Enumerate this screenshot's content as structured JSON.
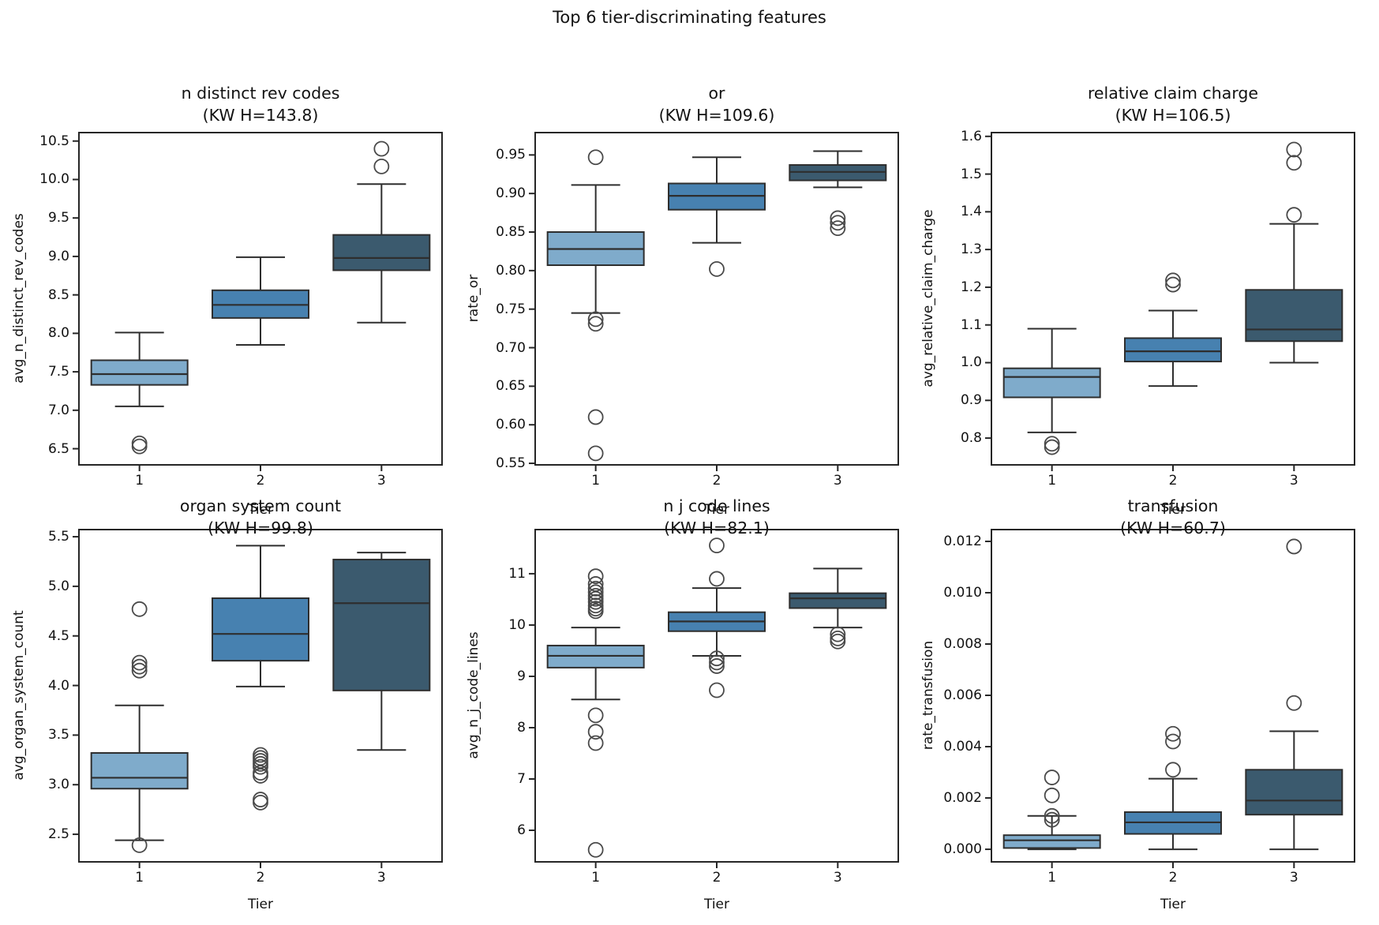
{
  "figure": {
    "title": "Top 6 tier-discriminating features"
  },
  "shared": {
    "xlabel": "Tier",
    "categories": [
      "1",
      "2",
      "3"
    ],
    "palette": [
      "#7fabcb",
      "#4781b0",
      "#3b5a6e"
    ],
    "edge_color": "#2e2e2e",
    "outlier_color": "#4a4a4a",
    "spine_color": "#262626"
  },
  "chart_data": [
    {
      "type": "box",
      "title": "n distinct rev codes",
      "kw_label": "(KW H=143.8)",
      "ylabel": "avg_n_distinct_rev_codes",
      "ylim": [
        6.29,
        10.61
      ],
      "yticks": [
        6.5,
        7.0,
        7.5,
        8.0,
        8.5,
        9.0,
        9.5,
        10.0,
        10.5
      ],
      "ytick_labels": [
        "6.5",
        "7.0",
        "7.5",
        "8.0",
        "8.5",
        "9.0",
        "9.5",
        "10.0",
        "10.5"
      ],
      "series": [
        {
          "tier": "1",
          "whislo": 7.05,
          "q1": 7.33,
          "med": 7.47,
          "q3": 7.65,
          "whishi": 8.01,
          "outliers": [
            6.57,
            6.53
          ]
        },
        {
          "tier": "2",
          "whislo": 7.85,
          "q1": 8.2,
          "med": 8.37,
          "q3": 8.56,
          "whishi": 8.99,
          "outliers": []
        },
        {
          "tier": "3",
          "whislo": 8.14,
          "q1": 8.82,
          "med": 8.98,
          "q3": 9.28,
          "whishi": 9.94,
          "outliers": [
            10.4,
            10.17
          ]
        }
      ]
    },
    {
      "type": "box",
      "title": "or",
      "kw_label": "(KW H=109.6)",
      "ylabel": "rate_or",
      "ylim": [
        0.548,
        0.979
      ],
      "yticks": [
        0.55,
        0.6,
        0.65,
        0.7,
        0.75,
        0.8,
        0.85,
        0.9,
        0.95
      ],
      "ytick_labels": [
        "0.55",
        "0.60",
        "0.65",
        "0.70",
        "0.75",
        "0.80",
        "0.85",
        "0.90",
        "0.95"
      ],
      "series": [
        {
          "tier": "1",
          "whislo": 0.745,
          "q1": 0.807,
          "med": 0.828,
          "q3": 0.85,
          "whishi": 0.911,
          "outliers": [
            0.947,
            0.737,
            0.731,
            0.61,
            0.563
          ]
        },
        {
          "tier": "2",
          "whislo": 0.836,
          "q1": 0.879,
          "med": 0.897,
          "q3": 0.913,
          "whishi": 0.947,
          "outliers": [
            0.802
          ]
        },
        {
          "tier": "3",
          "whislo": 0.908,
          "q1": 0.917,
          "med": 0.928,
          "q3": 0.937,
          "whishi": 0.955,
          "outliers": [
            0.868,
            0.862,
            0.855
          ]
        }
      ]
    },
    {
      "type": "box",
      "title": "relative claim charge",
      "kw_label": "(KW H=106.5)",
      "ylabel": "avg_relative_claim_charge",
      "ylim": [
        0.729,
        1.61
      ],
      "yticks": [
        0.8,
        0.9,
        1.0,
        1.1,
        1.2,
        1.3,
        1.4,
        1.5,
        1.6
      ],
      "ytick_labels": [
        "0.8",
        "0.9",
        "1.0",
        "1.1",
        "1.2",
        "1.3",
        "1.4",
        "1.5",
        "1.6"
      ],
      "series": [
        {
          "tier": "1",
          "whislo": 0.815,
          "q1": 0.908,
          "med": 0.962,
          "q3": 0.985,
          "whishi": 1.09,
          "outliers": [
            0.785,
            0.776
          ]
        },
        {
          "tier": "2",
          "whislo": 0.938,
          "q1": 1.003,
          "med": 1.03,
          "q3": 1.065,
          "whishi": 1.138,
          "outliers": [
            1.218,
            1.207
          ]
        },
        {
          "tier": "3",
          "whislo": 1.0,
          "q1": 1.057,
          "med": 1.088,
          "q3": 1.193,
          "whishi": 1.368,
          "outliers": [
            1.565,
            1.53,
            1.392
          ]
        }
      ]
    },
    {
      "type": "box",
      "title": "organ system count",
      "kw_label": "(KW H=99.8)",
      "ylabel": "avg_organ_system_count",
      "ylim": [
        2.222,
        5.572
      ],
      "yticks": [
        2.5,
        3.0,
        3.5,
        4.0,
        4.5,
        5.0,
        5.5
      ],
      "ytick_labels": [
        "2.5",
        "3.0",
        "3.5",
        "4.0",
        "4.5",
        "5.0",
        "5.5"
      ],
      "series": [
        {
          "tier": "1",
          "whislo": 2.44,
          "q1": 2.96,
          "med": 3.07,
          "q3": 3.32,
          "whishi": 3.8,
          "outliers": [
            4.77,
            4.23,
            4.19,
            4.15,
            2.39
          ]
        },
        {
          "tier": "2",
          "whislo": 3.99,
          "q1": 4.25,
          "med": 4.52,
          "q3": 4.88,
          "whishi": 5.41,
          "outliers": [
            3.3,
            3.27,
            3.24,
            3.21,
            3.18,
            3.12,
            3.09,
            2.85,
            2.82
          ]
        },
        {
          "tier": "3",
          "whislo": 3.35,
          "q1": 3.95,
          "med": 4.83,
          "q3": 5.27,
          "whishi": 5.34,
          "outliers": []
        }
      ]
    },
    {
      "type": "box",
      "title": "n j code lines",
      "kw_label": "(KW H=82.1)",
      "ylabel": "avg_n_j_code_lines",
      "ylim": [
        5.385,
        11.86
      ],
      "yticks": [
        6,
        7,
        8,
        9,
        10,
        11
      ],
      "ytick_labels": [
        "6",
        "7",
        "8",
        "9",
        "10",
        "11"
      ],
      "series": [
        {
          "tier": "1",
          "whislo": 8.55,
          "q1": 9.17,
          "med": 9.4,
          "q3": 9.6,
          "whishi": 9.95,
          "outliers": [
            10.95,
            10.8,
            10.71,
            10.64,
            10.57,
            10.51,
            10.45,
            10.38,
            10.32,
            10.27,
            8.24,
            7.92,
            7.7,
            5.62
          ]
        },
        {
          "tier": "2",
          "whislo": 9.4,
          "q1": 9.88,
          "med": 10.07,
          "q3": 10.25,
          "whishi": 10.72,
          "outliers": [
            11.55,
            10.9,
            9.35,
            9.27,
            9.2,
            8.73
          ]
        },
        {
          "tier": "3",
          "whislo": 9.95,
          "q1": 10.33,
          "med": 10.52,
          "q3": 10.62,
          "whishi": 11.1,
          "outliers": [
            9.82,
            9.74,
            9.68
          ]
        }
      ]
    },
    {
      "type": "box",
      "title": "transfusion",
      "kw_label": "(KW H=60.7)",
      "ylabel": "rate_transfusion",
      "ylim": [
        -0.00049,
        0.01246
      ],
      "yticks": [
        0.0,
        0.002,
        0.004,
        0.006,
        0.008,
        0.01,
        0.012
      ],
      "ytick_labels": [
        "0.000",
        "0.002",
        "0.004",
        "0.006",
        "0.008",
        "0.010",
        "0.012"
      ],
      "series": [
        {
          "tier": "1",
          "whislo": 0.0,
          "q1": 5e-05,
          "med": 0.00035,
          "q3": 0.00055,
          "whishi": 0.0013,
          "outliers": [
            0.0028,
            0.0021,
            0.0013,
            0.00115
          ]
        },
        {
          "tier": "2",
          "whislo": 0.0,
          "q1": 0.0006,
          "med": 0.00105,
          "q3": 0.00145,
          "whishi": 0.00275,
          "outliers": [
            0.0045,
            0.0042,
            0.0031
          ]
        },
        {
          "tier": "3",
          "whislo": 0.0,
          "q1": 0.00135,
          "med": 0.0019,
          "q3": 0.0031,
          "whishi": 0.0046,
          "outliers": [
            0.0118,
            0.0057
          ]
        }
      ]
    }
  ]
}
